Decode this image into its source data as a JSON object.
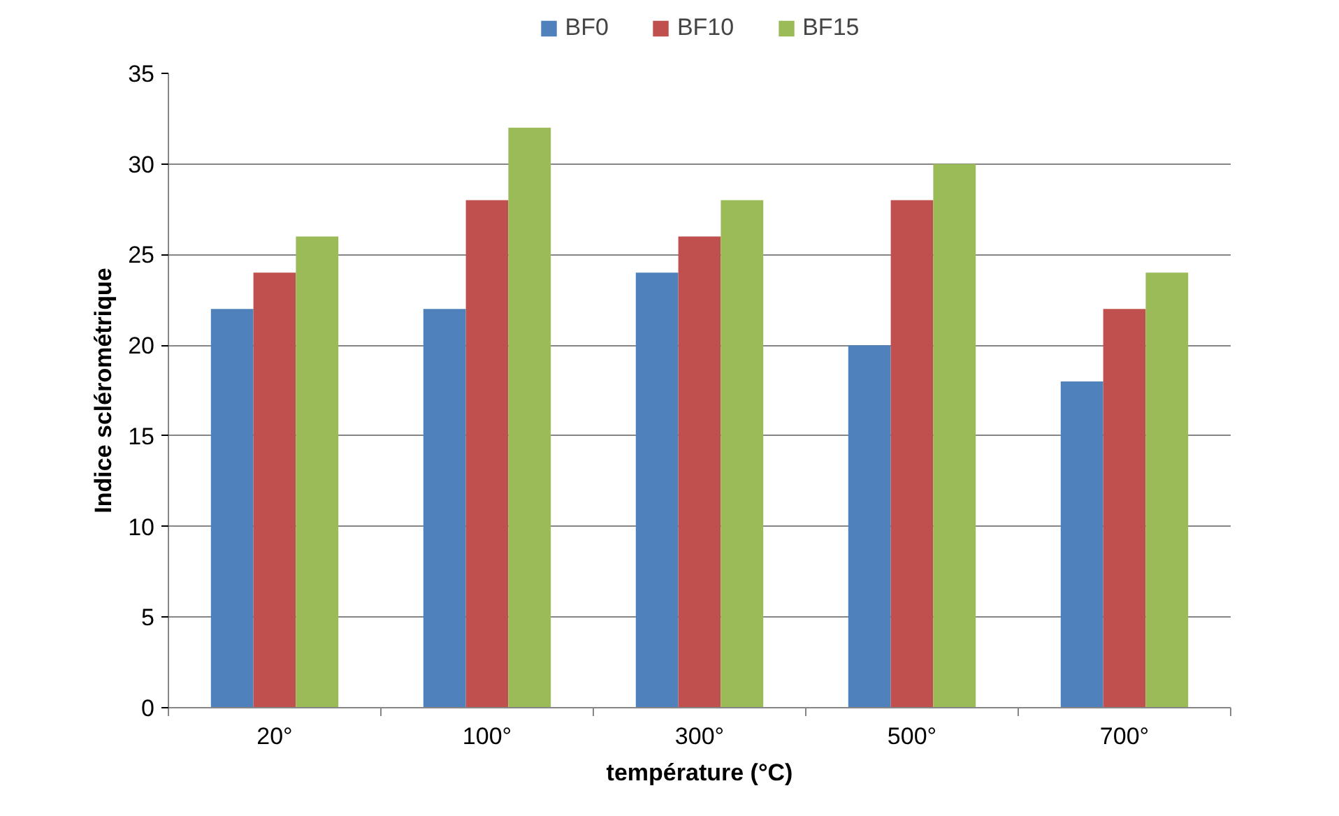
{
  "chart_data": {
    "type": "bar",
    "xlabel": "température (°C)",
    "ylabel": "Indice sclérométrique",
    "categories": [
      "20°",
      "100°",
      "300°",
      "500°",
      "700°"
    ],
    "series": [
      {
        "name": "BF0",
        "color": "#4f81bd",
        "values": [
          22,
          22,
          24,
          20,
          18
        ]
      },
      {
        "name": "BF10",
        "color": "#c0504d",
        "values": [
          24,
          28,
          26,
          28,
          22
        ]
      },
      {
        "name": "BF15",
        "color": "#9bbb59",
        "values": [
          26,
          32,
          28,
          30,
          24
        ]
      }
    ],
    "ylim": [
      0,
      35
    ],
    "yticks": [
      0,
      5,
      10,
      15,
      20,
      25,
      30,
      35
    ],
    "grid": "y",
    "legend": "top"
  }
}
